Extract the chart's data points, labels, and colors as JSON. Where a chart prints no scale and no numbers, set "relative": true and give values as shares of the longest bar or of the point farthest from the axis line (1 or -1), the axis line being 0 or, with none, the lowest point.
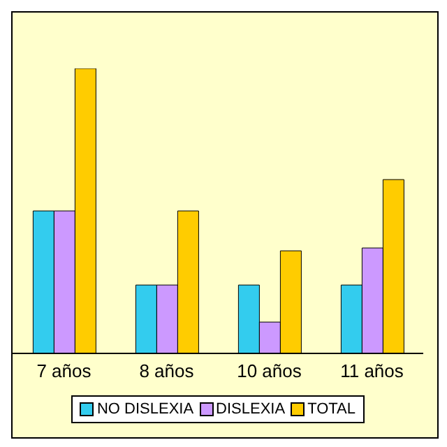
{
  "chart_data": {
    "type": "bar",
    "relative": true,
    "categories": [
      "7 años",
      "8 años",
      "10 años",
      "11 años"
    ],
    "series": [
      {
        "name": "NO DISLEXIA",
        "color": "#33ccee",
        "values": [
          0.5,
          0.24,
          0.24,
          0.24
        ]
      },
      {
        "name": "DISLEXIA",
        "color": "#cc99ff",
        "values": [
          0.5,
          0.24,
          0.11,
          0.37
        ]
      },
      {
        "name": "TOTAL",
        "color": "#ffcc00",
        "values": [
          1,
          0.5,
          0.36,
          0.61
        ]
      }
    ],
    "legend": "bottom"
  }
}
